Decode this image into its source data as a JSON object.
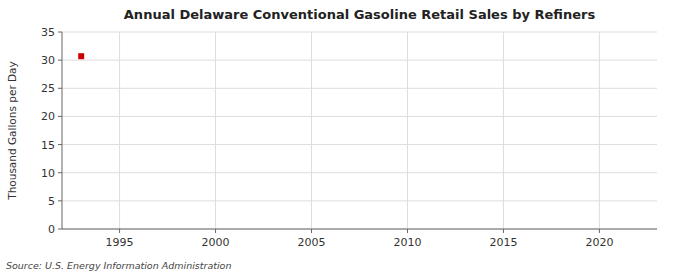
{
  "chart_data": {
    "type": "scatter",
    "title": "Annual Delaware Conventional Gasoline Retail Sales by Refiners",
    "y_label": "Thousand Gallons per Day",
    "source": "Source: U.S. Energy Information Administration",
    "x": [
      1993
    ],
    "values": [
      30.7
    ],
    "color": "#cc0000",
    "marker": "square",
    "xlim": [
      1992,
      2023
    ],
    "ylim": [
      0,
      35
    ],
    "xticks": [
      1995,
      2000,
      2005,
      2010,
      2015,
      2020
    ],
    "yticks": [
      0,
      5,
      10,
      15,
      20,
      25,
      30,
      35
    ],
    "grid": true
  }
}
